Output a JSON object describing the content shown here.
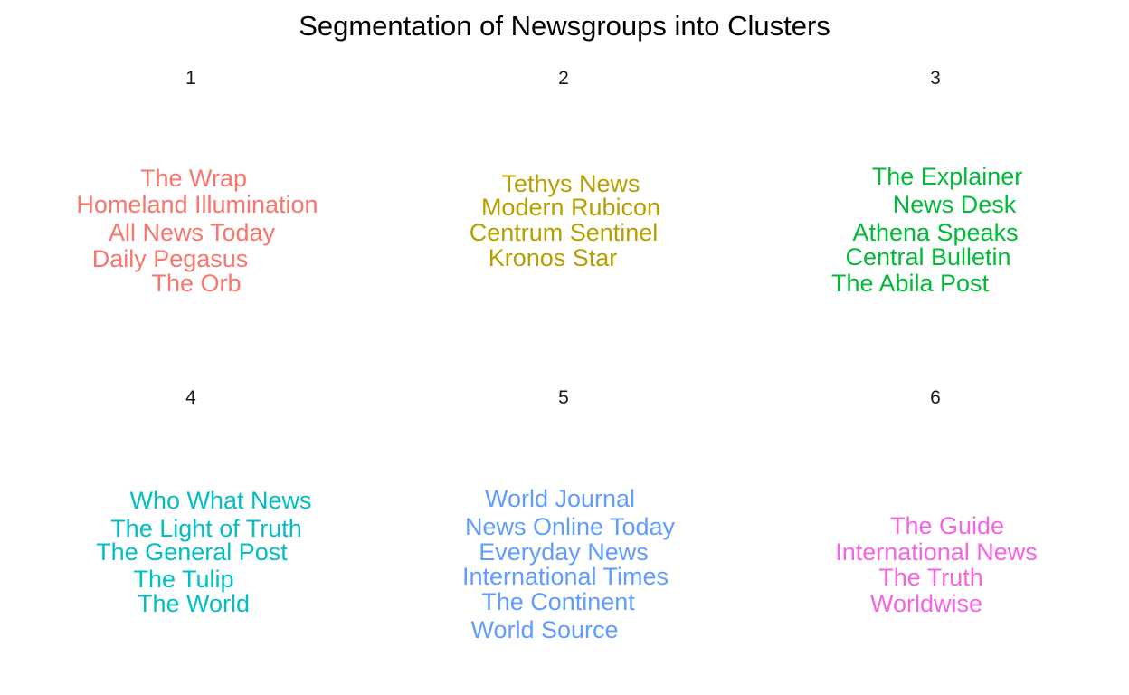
{
  "chart_data": {
    "type": "wordcloud-facets",
    "title": "Segmentation of Newsgroups into Clusters",
    "facets": [
      {
        "label": "1",
        "color": "#F8766D",
        "words": [
          "The Wrap",
          "Homeland Illumination",
          "All News Today",
          "Daily Pegasus",
          "The Orb"
        ]
      },
      {
        "label": "2",
        "color": "#B79F00",
        "words": [
          "Tethys News",
          "Modern Rubicon",
          "Centrum Sentinel",
          "Kronos Star"
        ]
      },
      {
        "label": "3",
        "color": "#00BA38",
        "words": [
          "The Explainer",
          "News Desk",
          "Athena Speaks",
          "Central Bulletin",
          "The Abila Post"
        ]
      },
      {
        "label": "4",
        "color": "#00BFC4",
        "words": [
          "Who What News",
          "The Light of Truth",
          "The General Post",
          "The Tulip",
          "The World"
        ]
      },
      {
        "label": "5",
        "color": "#619CFF",
        "words": [
          "World Journal",
          "News Online Today",
          "Everyday News",
          "International Times",
          "The Continent",
          "World Source"
        ]
      },
      {
        "label": "6",
        "color": "#F564E3",
        "words": [
          "The Guide",
          "International News",
          "The Truth",
          "Worldwise"
        ]
      }
    ]
  }
}
